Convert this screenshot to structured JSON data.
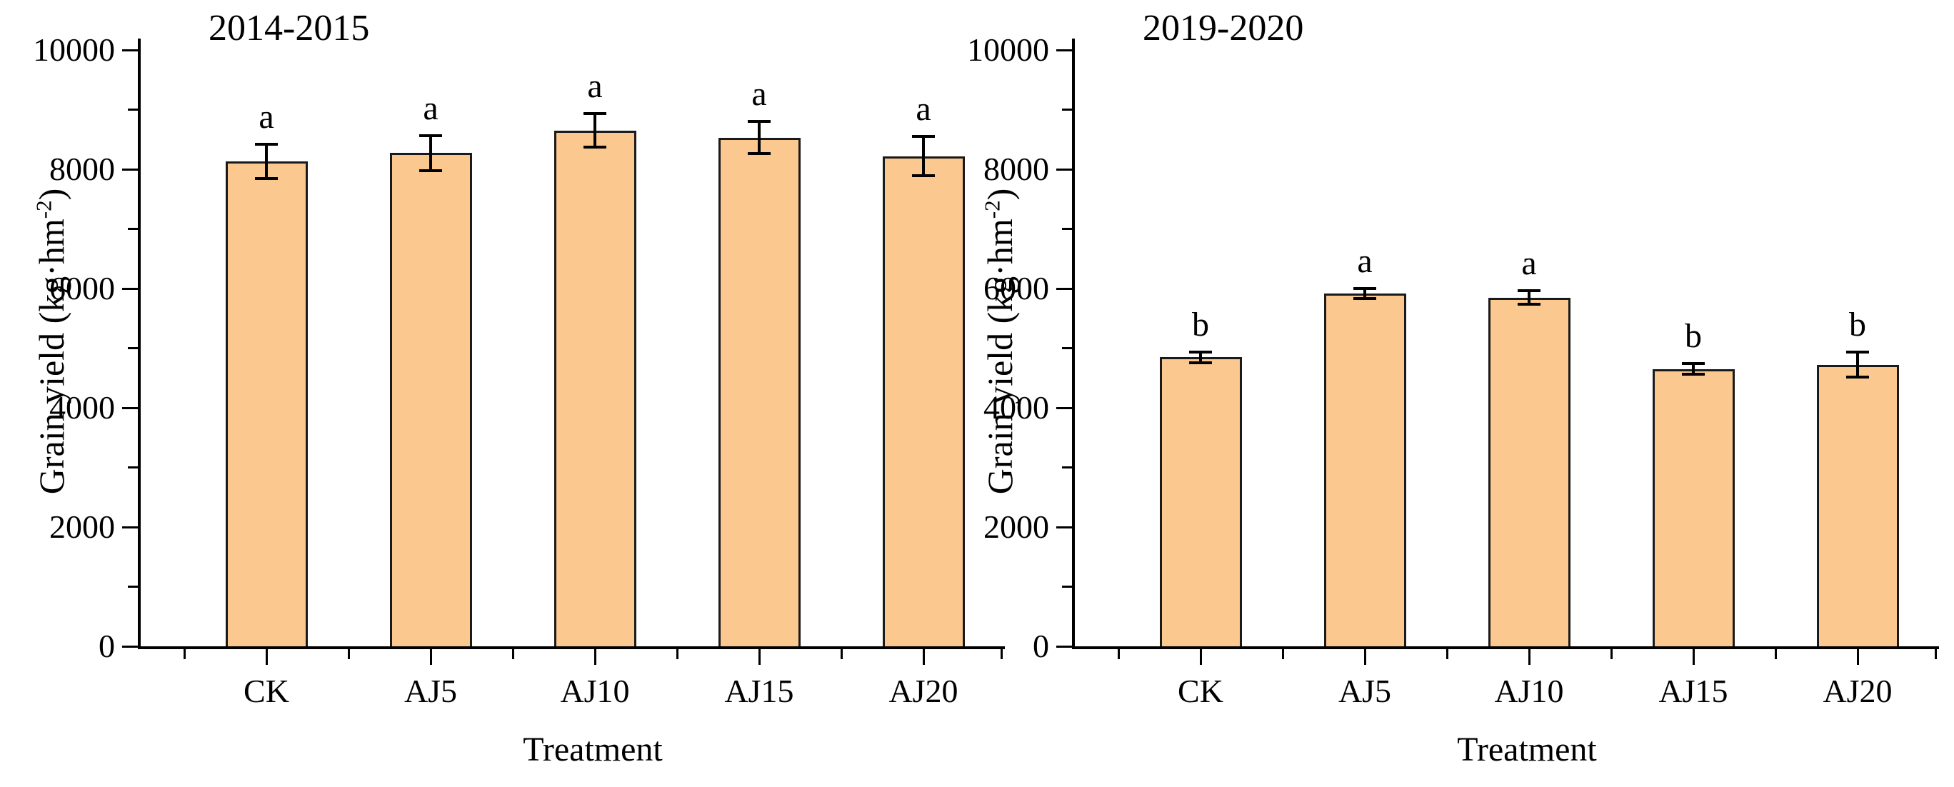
{
  "colors": {
    "bar_fill": "#FBC88F",
    "bar_edge": "#1A1A1A",
    "axis": "#000000",
    "text": "#000000"
  },
  "chart_data": [
    {
      "type": "bar",
      "title": "2014-2015",
      "xlabel": "Treatment",
      "ylabel": "Grain yield (kg·hm⁻²)",
      "ylabel_main": "Grain yield (kg·hm",
      "ylabel_sup": "-2",
      "ylabel_close": ")",
      "ylim": [
        0,
        10000
      ],
      "y_major_tick_step": 2000,
      "y_minor_tick_step": 1000,
      "grid": false,
      "legend": null,
      "categories": [
        "CK",
        "AJ5",
        "AJ10",
        "AJ15",
        "AJ20"
      ],
      "values": [
        8130,
        8270,
        8650,
        8530,
        8220
      ],
      "errors": [
        290,
        290,
        280,
        270,
        330
      ],
      "sig_letters": [
        "a",
        "a",
        "a",
        "a",
        "a"
      ]
    },
    {
      "type": "bar",
      "title": "2019-2020",
      "xlabel": "Treatment",
      "ylabel": "Grain yield (kg·hm⁻²)",
      "ylabel_main": "Grain yield (kg·hm",
      "ylabel_sup": "-2",
      "ylabel_close": ")",
      "ylim": [
        0,
        10000
      ],
      "y_major_tick_step": 2000,
      "y_minor_tick_step": 1000,
      "grid": false,
      "legend": null,
      "categories": [
        "CK",
        "AJ5",
        "AJ10",
        "AJ15",
        "AJ20"
      ],
      "values": [
        4850,
        5920,
        5850,
        4650,
        4720
      ],
      "errors": [
        90,
        85,
        110,
        90,
        210
      ],
      "sig_letters": [
        "b",
        "a",
        "a",
        "b",
        "b"
      ]
    }
  ]
}
